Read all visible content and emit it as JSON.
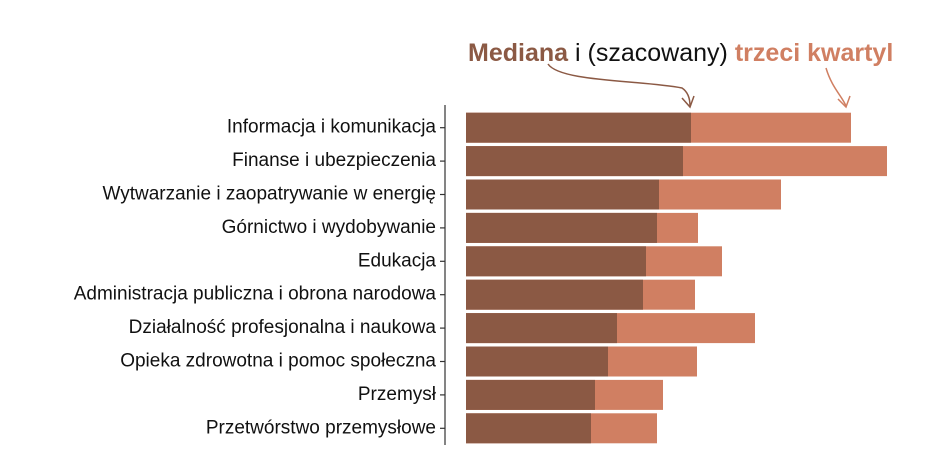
{
  "chart_data": {
    "type": "bar",
    "orientation": "horizontal",
    "title_connector": "i (szacowany)",
    "categories": [
      "Informacja i komunikacja",
      "Finanse i ubezpieczenia",
      "Wytwarzanie i zaopatrywanie w energię",
      "Górnictwo i wydobywanie",
      "Edukacja",
      "Administracja publiczna i obrona narodowa",
      "Działalność profesjonalna i naukowa",
      "Opieka zdrowotna i pomoc społeczna",
      "Przemysł",
      "Przetwórstwo przemysłowe"
    ],
    "series": [
      {
        "name": "Mediana",
        "color": "#8b5944",
        "values": [
          225,
          217,
          193,
          191,
          180,
          177,
          151,
          142,
          129,
          125
        ]
      },
      {
        "name": "trzeci kwartyl",
        "color": "#d07f62",
        "values": [
          385,
          421,
          315,
          232,
          256,
          229,
          289,
          231,
          197,
          191
        ]
      }
    ]
  }
}
